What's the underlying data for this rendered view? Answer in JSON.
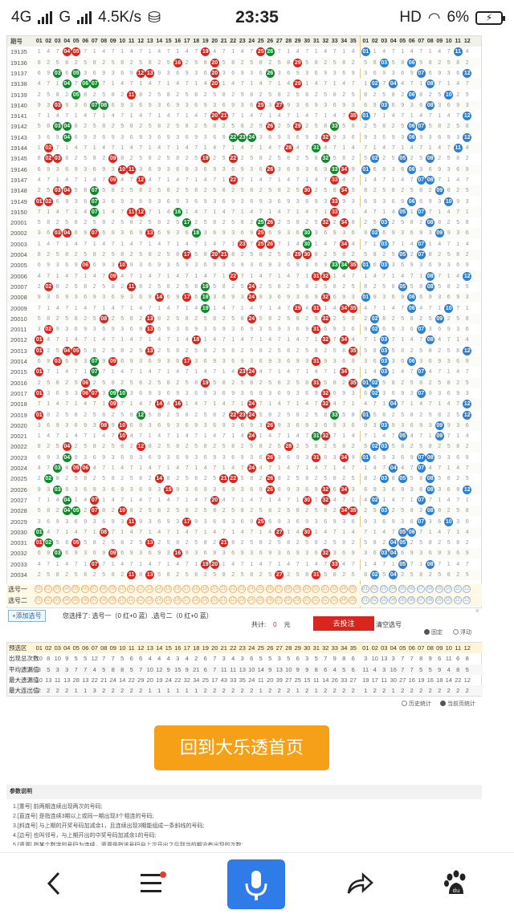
{
  "status_bar": {
    "network": "4G",
    "network2": "G",
    "speed": "4.5K/s",
    "time": "23:35",
    "hd": "HD",
    "battery": "6%"
  },
  "table": {
    "header_label": "期号",
    "columns": [
      "01",
      "02",
      "03",
      "04",
      "05",
      "06",
      "07",
      "08",
      "09",
      "10",
      "11",
      "12",
      "13",
      "14",
      "15",
      "16",
      "17",
      "18",
      "19",
      "20",
      "21",
      "22",
      "23",
      "24",
      "25",
      "26",
      "27",
      "28",
      "29",
      "30",
      "31",
      "32",
      "33",
      "34",
      "35",
      "01",
      "02",
      "03",
      "04",
      "05",
      "06",
      "07",
      "08",
      "09",
      "10",
      "11",
      "12"
    ],
    "rows": [
      {
        "issue": "19135",
        "red": [
          4,
          5,
          19,
          25
        ],
        "green": [
          26
        ],
        "blue": [
          1,
          11
        ]
      },
      {
        "issue": "19136",
        "red": [
          16,
          20,
          29
        ],
        "green": [],
        "blue": [
          3,
          6
        ]
      },
      {
        "issue": "19137",
        "red": [
          12,
          13,
          20
        ],
        "green": [
          3,
          5,
          26
        ],
        "blue": [
          7,
          12
        ]
      },
      {
        "issue": "19138",
        "red": [
          20,
          29
        ],
        "green": [
          4,
          6,
          7
        ],
        "blue": [
          2,
          4,
          8
        ]
      },
      {
        "issue": "19139",
        "red": [
          11
        ],
        "green": [
          5
        ],
        "blue": [
          6,
          10
        ]
      },
      {
        "issue": "19140",
        "red": [
          3,
          25,
          27
        ],
        "green": [
          7,
          8
        ],
        "blue": [
          3,
          8
        ]
      },
      {
        "issue": "19141",
        "red": [
          20,
          21,
          35
        ],
        "green": [],
        "blue": [
          1,
          12
        ]
      },
      {
        "issue": "19142",
        "red": [
          26,
          29
        ],
        "green": [
          3,
          4,
          33
        ],
        "blue": [
          6,
          7
        ]
      },
      {
        "issue": "19143",
        "red": [
          32
        ],
        "green": [
          4,
          22,
          23,
          24
        ],
        "blue": [
          6,
          12
        ]
      },
      {
        "issue": "19144",
        "red": [
          2,
          28
        ],
        "green": [
          31
        ],
        "blue": [
          11
        ]
      },
      {
        "issue": "19145",
        "red": [
          2,
          3,
          9,
          19,
          22
        ],
        "green": [
          32
        ],
        "blue": [
          2,
          5,
          8
        ]
      },
      {
        "issue": "19146",
        "red": [
          10,
          11,
          26,
          34
        ],
        "green": [
          33
        ],
        "blue": [
          1,
          6
        ]
      },
      {
        "issue": "19147",
        "red": [
          9,
          12,
          22,
          33
        ],
        "green": [],
        "blue": [
          7,
          8
        ]
      },
      {
        "issue": "19148",
        "red": [
          3,
          4,
          30,
          34
        ],
        "green": [
          7
        ],
        "blue": [
          9
        ]
      },
      {
        "issue": "19149",
        "red": [
          1,
          2,
          33
        ],
        "green": [
          7
        ],
        "blue": [
          6,
          10
        ]
      },
      {
        "issue": "19150",
        "red": [
          11,
          12,
          33
        ],
        "green": [
          7,
          16
        ],
        "blue": [
          5,
          7
        ]
      },
      {
        "issue": "20001",
        "red": [
          26,
          32,
          34
        ],
        "green": [
          17,
          25
        ],
        "blue": [
          3,
          8
        ]
      },
      {
        "issue": "20002",
        "red": [
          3,
          4,
          7,
          13,
          25
        ],
        "green": [
          18,
          30
        ],
        "blue": [
          2,
          9
        ]
      },
      {
        "issue": "20003",
        "red": [
          23,
          25,
          26,
          34
        ],
        "green": [
          30
        ],
        "blue": [
          3,
          7
        ]
      },
      {
        "issue": "20004",
        "red": [
          17,
          20,
          21,
          29,
          30
        ],
        "green": [],
        "blue": [
          5,
          7
        ]
      },
      {
        "issue": "20005",
        "red": [
          6,
          10,
          35
        ],
        "green": [
          33,
          34,
          35
        ],
        "blue": [
          1,
          3
        ]
      },
      {
        "issue": "20006",
        "red": [
          9,
          22,
          31,
          32
        ],
        "green": [],
        "blue": [
          8,
          12
        ]
      },
      {
        "issue": "20007",
        "red": [
          2,
          11,
          24
        ],
        "green": [
          19
        ],
        "blue": [
          5,
          8
        ]
      },
      {
        "issue": "20008",
        "red": [
          14,
          17,
          24,
          32
        ],
        "green": [
          19
        ],
        "blue": [
          1,
          6
        ]
      },
      {
        "issue": "20009",
        "red": [
          29,
          31,
          34,
          35
        ],
        "green": [
          19
        ],
        "blue": [
          6,
          10
        ]
      },
      {
        "issue": "20010",
        "red": [
          8,
          13,
          24,
          32
        ],
        "green": [],
        "blue": [
          2,
          9
        ]
      },
      {
        "issue": "20011",
        "red": [
          2,
          13,
          31
        ],
        "green": [],
        "blue": [
          2,
          7
        ]
      },
      {
        "issue": "20012",
        "red": [
          1,
          18,
          32,
          34
        ],
        "green": [],
        "blue": [
          3,
          8
        ]
      },
      {
        "issue": "20013",
        "red": [
          1,
          4,
          5,
          13,
          35
        ],
        "green": [],
        "blue": [
          3,
          12
        ]
      },
      {
        "issue": "20014",
        "red": [
          3,
          9,
          17,
          31
        ],
        "green": [
          7
        ],
        "blue": [
          3,
          6
        ]
      },
      {
        "issue": "20015",
        "red": [
          1,
          23,
          24,
          34
        ],
        "green": [
          7
        ],
        "blue": [
          3,
          7
        ]
      },
      {
        "issue": "20016",
        "red": [
          6,
          19,
          31,
          35
        ],
        "green": [],
        "blue": [
          1,
          2
        ]
      },
      {
        "issue": "20017",
        "red": [
          1,
          6,
          7,
          32
        ],
        "green": [
          9,
          10
        ],
        "blue": [
          2,
          7
        ]
      },
      {
        "issue": "20018",
        "red": [
          9,
          14,
          16,
          24,
          32
        ],
        "green": [],
        "blue": [
          4,
          12
        ]
      },
      {
        "issue": "20019",
        "red": [
          1,
          22,
          23,
          24
        ],
        "green": [
          12,
          33
        ],
        "blue": [
          1,
          12
        ]
      },
      {
        "issue": "20020",
        "red": [
          8,
          10,
          26
        ],
        "green": [],
        "blue": [
          3,
          9
        ]
      },
      {
        "issue": "20021",
        "red": [
          10,
          24,
          32
        ],
        "green": [
          31
        ],
        "blue": [
          5,
          9
        ]
      },
      {
        "issue": "20022",
        "red": [
          4,
          12,
          28
        ],
        "green": [],
        "blue": [
          2,
          3
        ]
      },
      {
        "issue": "20023",
        "red": [
          26,
          31,
          34
        ],
        "green": [
          4
        ],
        "blue": [
          1,
          7,
          8
        ]
      },
      {
        "issue": "20024",
        "red": [
          5,
          6,
          24
        ],
        "green": [
          3
        ],
        "blue": [
          4,
          7
        ]
      },
      {
        "issue": "20025",
        "red": [
          14,
          21,
          22,
          26
        ],
        "green": [
          2
        ],
        "blue": [
          3,
          5,
          8
        ]
      },
      {
        "issue": "20026",
        "red": [
          15,
          26,
          32,
          34
        ],
        "green": [
          3
        ],
        "blue": [
          8,
          12
        ]
      },
      {
        "issue": "20027",
        "red": [
          7,
          20,
          30,
          32
        ],
        "green": [
          4
        ],
        "blue": [
          2,
          7
        ]
      },
      {
        "issue": "20028",
        "red": [
          7,
          10,
          34,
          35
        ],
        "green": [
          4,
          5
        ],
        "blue": [
          3,
          8
        ]
      },
      {
        "issue": "20029",
        "red": [
          11,
          17,
          25
        ],
        "green": [],
        "blue": [
          7,
          10
        ]
      },
      {
        "issue": "20030",
        "red": [
          8,
          27,
          30
        ],
        "green": [
          1
        ],
        "blue": [
          5,
          6
        ]
      },
      {
        "issue": "20031",
        "red": [
          1,
          5,
          13,
          21
        ],
        "green": [
          2
        ],
        "blue": [
          4,
          5
        ]
      },
      {
        "issue": "20032",
        "red": [
          9,
          16,
          32
        ],
        "green": [
          3
        ],
        "blue": [
          3,
          4
        ]
      },
      {
        "issue": "20033",
        "red": [
          7,
          19,
          20,
          33
        ],
        "green": [],
        "blue": [
          5,
          8
        ]
      },
      {
        "issue": "20034",
        "red": [
          11,
          13,
          27,
          31
        ],
        "green": [],
        "blue": [
          2,
          4
        ]
      }
    ],
    "pick_rows": [
      "选号一",
      "选号二"
    ]
  },
  "controls": {
    "add_button": "+添加选号",
    "chosen_text": "您选择了: 选号一（0 红+0 蓝）,选号二（0 红+0 蓝）",
    "total_label": "共计:",
    "total_value": "0",
    "total_unit": "元",
    "submit": "去投注",
    "clear": "清空选号",
    "fixed": "固定",
    "float": "浮动"
  },
  "stats": {
    "rows": [
      {
        "label": "预选区",
        "values": [
          "01",
          "02",
          "03",
          "04",
          "05",
          "06",
          "07",
          "08",
          "09",
          "10",
          "11",
          "12",
          "13",
          "14",
          "15",
          "16",
          "17",
          "18",
          "19",
          "20",
          "21",
          "22",
          "23",
          "24",
          "25",
          "26",
          "27",
          "28",
          "29",
          "30",
          "31",
          "32",
          "33",
          "34",
          "35",
          "01",
          "02",
          "03",
          "04",
          "05",
          "06",
          "07",
          "08",
          "09",
          "10",
          "11",
          "12"
        ]
      },
      {
        "label": "出现总次数",
        "values": [
          "10",
          "8",
          "10",
          "9",
          "5",
          "5",
          "12",
          "7",
          "7",
          "5",
          "6",
          "6",
          "4",
          "4",
          "4",
          "3",
          "4",
          "2",
          "6",
          "7",
          "3",
          "4",
          "3",
          "6",
          "5",
          "5",
          "3",
          "5",
          "6",
          "3",
          "5",
          "7",
          "9",
          "8",
          "6",
          "3",
          "10",
          "13",
          "3",
          "7",
          "7",
          "8",
          "9",
          "6",
          "11",
          "6",
          "8"
        ]
      },
      {
        "label": "平均遗漏值",
        "values": [
          "3",
          "5",
          "3",
          "3",
          "7",
          "7",
          "4",
          "5",
          "8",
          "8",
          "5",
          "7",
          "10",
          "12",
          "9",
          "15",
          "9",
          "21",
          "6",
          "7",
          "11",
          "11",
          "13",
          "10",
          "14",
          "9",
          "13",
          "10",
          "9",
          "9",
          "8",
          "6",
          "4",
          "5",
          "6",
          "11",
          "4",
          "3",
          "16",
          "7",
          "7",
          "5",
          "5",
          "9",
          "4",
          "8",
          "5"
        ]
      },
      {
        "label": "最大遗漏值",
        "values": [
          "10",
          "13",
          "11",
          "13",
          "28",
          "13",
          "22",
          "21",
          "24",
          "14",
          "22",
          "29",
          "20",
          "19",
          "24",
          "22",
          "32",
          "34",
          "25",
          "17",
          "43",
          "33",
          "35",
          "24",
          "11",
          "20",
          "39",
          "27",
          "25",
          "15",
          "11",
          "14",
          "26",
          "33",
          "27",
          "19",
          "17",
          "11",
          "30",
          "27",
          "16",
          "19",
          "16",
          "18",
          "14",
          "22",
          "12"
        ]
      },
      {
        "label": "最大连出值",
        "values": [
          "2",
          "2",
          "2",
          "2",
          "1",
          "1",
          "3",
          "2",
          "2",
          "2",
          "2",
          "2",
          "1",
          "1",
          "1",
          "1",
          "1",
          "1",
          "2",
          "2",
          "2",
          "2",
          "2",
          "2",
          "1",
          "2",
          "2",
          "2",
          "1",
          "2",
          "1",
          "2",
          "2",
          "2",
          "2",
          "1",
          "2",
          "2",
          "1",
          "2",
          "2",
          "2",
          "2",
          "2",
          "2",
          "2",
          "2"
        ]
      }
    ],
    "history": "历史统计",
    "current": "当前页统计"
  },
  "home_button": "回到大乐透首页",
  "notes": {
    "title": "参数说明",
    "items": [
      "1.[重号] 前两期连续出现两次的号码;",
      "2.[直连号] 是指连续3期以上或同一期出现3个相连的号码;",
      "3.[斜连号] 与上期的开奖号码加减余1，且连续出现3期能组成一条斜线的号码;",
      "4.[边号] 也叫邻号，与上期开出的中奖号码加减余1的号码;",
      "5.[遗漏] 指某个数字的号码为连续，遗漏是指该号码自上次开出之后到当前期没有出现的次数;"
    ]
  },
  "colors": {
    "red": "#d9251d",
    "green": "#0e8a2b",
    "blue": "#2f7fd1",
    "orange": "#f5a016",
    "mic": "#2f7be8"
  }
}
